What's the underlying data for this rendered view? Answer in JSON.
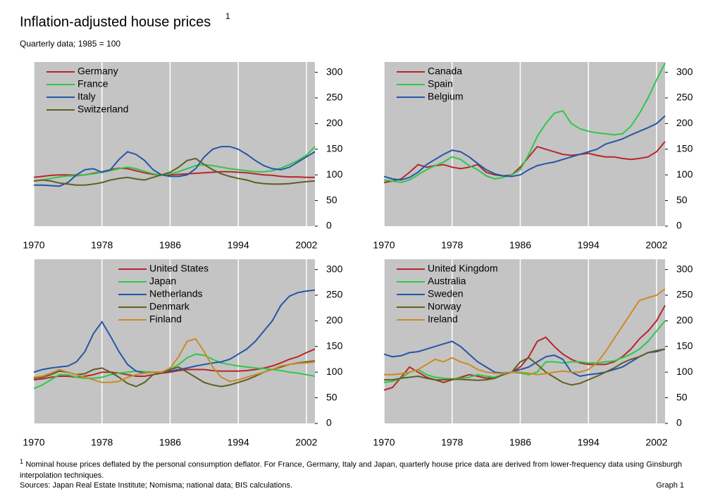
{
  "header": {
    "title": "Inflation-adjusted house prices",
    "title_mark": "1",
    "subtitle": "Quarterly data; 1985 = 100"
  },
  "chart_data": [
    {
      "type": "line",
      "legend": "upper left",
      "grid": "x",
      "y_axis_side": "right",
      "x": [
        1970,
        1971,
        1972,
        1973,
        1974,
        1975,
        1976,
        1977,
        1978,
        1979,
        1980,
        1981,
        1982,
        1983,
        1984,
        1985,
        1986,
        1987,
        1988,
        1989,
        1990,
        1991,
        1992,
        1993,
        1994,
        1995,
        1996,
        1997,
        1998,
        1999,
        2000,
        2001,
        2002,
        2003
      ],
      "xlim": [
        1970,
        2003
      ],
      "xticks": [
        1970,
        1978,
        1986,
        1994,
        2002
      ],
      "ylim": [
        0,
        320
      ],
      "yticks": [
        0,
        50,
        100,
        150,
        200,
        250,
        300
      ],
      "series": [
        {
          "name": "Germany",
          "color": "#b8262b",
          "values": [
            95,
            97,
            99,
            100,
            100,
            99,
            100,
            103,
            106,
            110,
            113,
            112,
            108,
            104,
            101,
            100,
            100,
            101,
            102,
            103,
            104,
            105,
            106,
            106,
            105,
            104,
            102,
            100,
            99,
            97,
            96,
            96,
            95,
            95
          ]
        },
        {
          "name": "France",
          "color": "#2ec84a",
          "values": [
            88,
            90,
            93,
            96,
            98,
            98,
            100,
            102,
            105,
            108,
            112,
            115,
            112,
            107,
            102,
            100,
            102,
            106,
            112,
            118,
            120,
            118,
            115,
            112,
            110,
            108,
            106,
            106,
            108,
            113,
            120,
            128,
            138,
            155
          ]
        },
        {
          "name": "Italy",
          "color": "#2556a8",
          "values": [
            80,
            80,
            79,
            78,
            85,
            100,
            110,
            112,
            105,
            110,
            130,
            145,
            140,
            128,
            110,
            100,
            97,
            97,
            100,
            112,
            135,
            150,
            155,
            155,
            150,
            140,
            128,
            118,
            112,
            110,
            115,
            125,
            135,
            145
          ]
        },
        {
          "name": "Switzerland",
          "color": "#5e6020",
          "values": [
            88,
            90,
            88,
            84,
            82,
            80,
            80,
            82,
            85,
            90,
            93,
            95,
            92,
            90,
            95,
            100,
            105,
            115,
            128,
            132,
            120,
            110,
            102,
            97,
            93,
            90,
            85,
            83,
            82,
            82,
            83,
            85,
            87,
            88
          ]
        }
      ]
    },
    {
      "type": "line",
      "legend": "upper left",
      "grid": "x",
      "y_axis_side": "right",
      "x": [
        1970,
        1971,
        1972,
        1973,
        1974,
        1975,
        1976,
        1977,
        1978,
        1979,
        1980,
        1981,
        1982,
        1983,
        1984,
        1985,
        1986,
        1987,
        1988,
        1989,
        1990,
        1991,
        1992,
        1993,
        1994,
        1995,
        1996,
        1997,
        1998,
        1999,
        2000,
        2001,
        2002,
        2003
      ],
      "xlim": [
        1970,
        2003
      ],
      "xticks": [
        1970,
        1978,
        1986,
        1994,
        2002
      ],
      "ylim": [
        0,
        320
      ],
      "yticks": [
        0,
        50,
        100,
        150,
        200,
        250,
        300
      ],
      "series": [
        {
          "name": "Canada",
          "color": "#b8262b",
          "values": [
            85,
            88,
            92,
            105,
            120,
            115,
            118,
            120,
            115,
            112,
            115,
            120,
            105,
            100,
            98,
            100,
            115,
            135,
            155,
            150,
            145,
            140,
            138,
            140,
            142,
            138,
            135,
            135,
            132,
            130,
            132,
            135,
            145,
            165
          ]
        },
        {
          "name": "Spain",
          "color": "#2ec84a",
          "values": [
            90,
            88,
            85,
            90,
            100,
            110,
            118,
            125,
            135,
            130,
            118,
            110,
            98,
            92,
            95,
            100,
            110,
            140,
            175,
            200,
            220,
            225,
            200,
            190,
            185,
            182,
            180,
            178,
            180,
            195,
            220,
            250,
            285,
            318
          ]
        },
        {
          "name": "Belgium",
          "color": "#2556a8",
          "values": [
            97,
            92,
            90,
            95,
            105,
            120,
            130,
            140,
            148,
            145,
            135,
            122,
            110,
            102,
            98,
            97,
            100,
            110,
            118,
            122,
            125,
            130,
            135,
            140,
            145,
            150,
            160,
            165,
            170,
            178,
            185,
            192,
            200,
            215
          ]
        }
      ]
    },
    {
      "type": "line",
      "legend": "upper center",
      "grid": "x",
      "y_axis_side": "right",
      "x": [
        1970,
        1971,
        1972,
        1973,
        1974,
        1975,
        1976,
        1977,
        1978,
        1979,
        1980,
        1981,
        1982,
        1983,
        1984,
        1985,
        1986,
        1987,
        1988,
        1989,
        1990,
        1991,
        1992,
        1993,
        1994,
        1995,
        1996,
        1997,
        1998,
        1999,
        2000,
        2001,
        2002,
        2003
      ],
      "xlim": [
        1970,
        2003
      ],
      "xticks": [
        1970,
        1978,
        1986,
        1994,
        2002
      ],
      "ylim": [
        0,
        320
      ],
      "yticks": [
        0,
        50,
        100,
        150,
        200,
        250,
        300
      ],
      "series": [
        {
          "name": "United States",
          "color": "#b8262b",
          "values": [
            85,
            87,
            90,
            92,
            92,
            90,
            92,
            95,
            100,
            100,
            98,
            95,
            92,
            92,
            95,
            98,
            100,
            103,
            105,
            105,
            105,
            103,
            102,
            102,
            102,
            103,
            105,
            108,
            112,
            118,
            125,
            130,
            138,
            145
          ]
        },
        {
          "name": "Japan",
          "color": "#2ec84a",
          "values": [
            68,
            75,
            85,
            95,
            95,
            90,
            88,
            88,
            90,
            95,
            98,
            100,
            102,
            101,
            100,
            100,
            105,
            115,
            128,
            135,
            133,
            125,
            118,
            115,
            112,
            110,
            108,
            107,
            105,
            103,
            100,
            98,
            95,
            92
          ]
        },
        {
          "name": "Netherlands",
          "color": "#2556a8",
          "values": [
            100,
            105,
            108,
            110,
            112,
            120,
            140,
            175,
            198,
            170,
            140,
            115,
            102,
            98,
            100,
            100,
            102,
            105,
            108,
            112,
            115,
            118,
            120,
            125,
            135,
            145,
            160,
            180,
            200,
            230,
            248,
            255,
            258,
            260
          ]
        },
        {
          "name": "Denmark",
          "color": "#5e6020",
          "values": [
            88,
            90,
            95,
            102,
            100,
            95,
            97,
            105,
            108,
            100,
            90,
            78,
            72,
            80,
            95,
            100,
            105,
            110,
            100,
            90,
            80,
            75,
            72,
            75,
            80,
            85,
            92,
            100,
            105,
            110,
            115,
            118,
            120,
            122
          ]
        },
        {
          "name": "Finland",
          "color": "#cc8a26",
          "values": [
            90,
            92,
            98,
            105,
            100,
            95,
            90,
            85,
            80,
            80,
            82,
            90,
            95,
            98,
            100,
            100,
            108,
            130,
            160,
            165,
            140,
            110,
            90,
            82,
            85,
            90,
            95,
            100,
            105,
            112,
            115,
            117,
            118,
            120
          ]
        }
      ]
    },
    {
      "type": "line",
      "legend": "upper left",
      "grid": "x",
      "y_axis_side": "right",
      "x": [
        1970,
        1971,
        1972,
        1973,
        1974,
        1975,
        1976,
        1977,
        1978,
        1979,
        1980,
        1981,
        1982,
        1983,
        1984,
        1985,
        1986,
        1987,
        1988,
        1989,
        1990,
        1991,
        1992,
        1993,
        1994,
        1995,
        1996,
        1997,
        1998,
        1999,
        2000,
        2001,
        2002,
        2003
      ],
      "xlim": [
        1970,
        2003
      ],
      "xticks": [
        1970,
        1978,
        1986,
        1994,
        2002
      ],
      "ylim": [
        0,
        320
      ],
      "yticks": [
        0,
        50,
        100,
        150,
        200,
        250,
        300
      ],
      "series": [
        {
          "name": "United Kingdom",
          "color": "#b8262b",
          "values": [
            65,
            70,
            90,
            110,
            100,
            90,
            85,
            80,
            85,
            90,
            95,
            92,
            88,
            90,
            95,
            100,
            110,
            130,
            160,
            168,
            150,
            135,
            125,
            118,
            115,
            115,
            115,
            120,
            130,
            145,
            165,
            180,
            200,
            230
          ]
        },
        {
          "name": "Australia",
          "color": "#2ec84a",
          "values": [
            80,
            82,
            88,
            100,
            105,
            95,
            90,
            88,
            87,
            88,
            90,
            95,
            92,
            90,
            95,
            100,
            98,
            95,
            100,
            120,
            120,
            118,
            120,
            120,
            118,
            118,
            120,
            122,
            128,
            135,
            145,
            160,
            180,
            200
          ]
        },
        {
          "name": "Sweden",
          "color": "#2556a8",
          "values": [
            135,
            130,
            132,
            138,
            140,
            145,
            150,
            155,
            160,
            150,
            135,
            120,
            110,
            100,
            98,
            100,
            105,
            110,
            120,
            130,
            133,
            125,
            100,
            92,
            95,
            97,
            100,
            105,
            110,
            120,
            130,
            138,
            140,
            145
          ]
        },
        {
          "name": "Norway",
          "color": "#5e6020",
          "values": [
            85,
            85,
            88,
            90,
            92,
            88,
            85,
            85,
            86,
            86,
            85,
            84,
            85,
            88,
            95,
            100,
            120,
            128,
            115,
            100,
            90,
            80,
            75,
            78,
            85,
            92,
            100,
            108,
            118,
            125,
            130,
            138,
            142,
            145
          ]
        },
        {
          "name": "Ireland",
          "color": "#cc8a26",
          "values": [
            95,
            95,
            97,
            100,
            105,
            115,
            125,
            120,
            128,
            120,
            115,
            105,
            100,
            98,
            97,
            100,
            100,
            98,
            95,
            97,
            100,
            102,
            100,
            100,
            105,
            118,
            140,
            165,
            190,
            215,
            240,
            245,
            250,
            262
          ]
        }
      ]
    }
  ],
  "footnote": {
    "mark": "1",
    "text": "Nominal house prices deflated by the personal consumption deflator. For France, Germany, Italy and Japan, quarterly house price data are derived from lower-frequency data using Ginsburgh interpolation techniques."
  },
  "sources": "Sources: Japan Real Estate Institute; Nomisma; national data; BIS calculations.",
  "graph_label": "Graph 1"
}
